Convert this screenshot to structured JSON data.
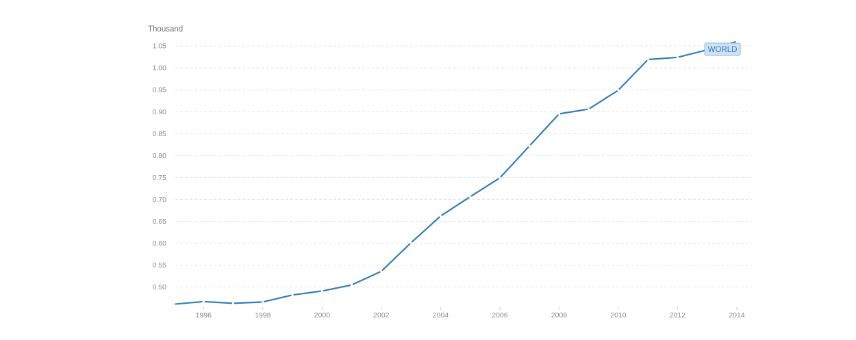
{
  "chart_data": {
    "type": "line",
    "title": "",
    "xlabel": "",
    "ylabel": "Thousand",
    "x": [
      1995,
      1996,
      1997,
      1998,
      1999,
      2000,
      2001,
      2002,
      2003,
      2004,
      2005,
      2006,
      2007,
      2008,
      2009,
      2010,
      2011,
      2012,
      2013,
      2014
    ],
    "series": [
      {
        "name": "WORLD",
        "color": "#2f7fb6",
        "values": [
          0.461,
          0.467,
          0.463,
          0.466,
          0.482,
          0.491,
          0.505,
          0.536,
          0.601,
          0.662,
          0.706,
          0.749,
          0.822,
          0.895,
          0.906,
          0.949,
          1.019,
          1.024,
          1.041,
          1.06
        ]
      }
    ],
    "xticks": [
      "1996",
      "1998",
      "2000",
      "2002",
      "2004",
      "2006",
      "2008",
      "2010",
      "2012",
      "2014"
    ],
    "yticks": [
      "0.50",
      "0.55",
      "0.60",
      "0.65",
      "0.70",
      "0.75",
      "0.80",
      "0.85",
      "0.90",
      "0.95",
      "1.00",
      "1.05"
    ],
    "ylim": [
      0.455,
      1.065
    ],
    "xlim": [
      1995,
      2014
    ],
    "grid": true,
    "legend": "inline-label-top-right"
  },
  "colors": {
    "grid": "#e2e2e2",
    "label_bg": "#cfe2f3",
    "label_border": "#8fb8de"
  }
}
